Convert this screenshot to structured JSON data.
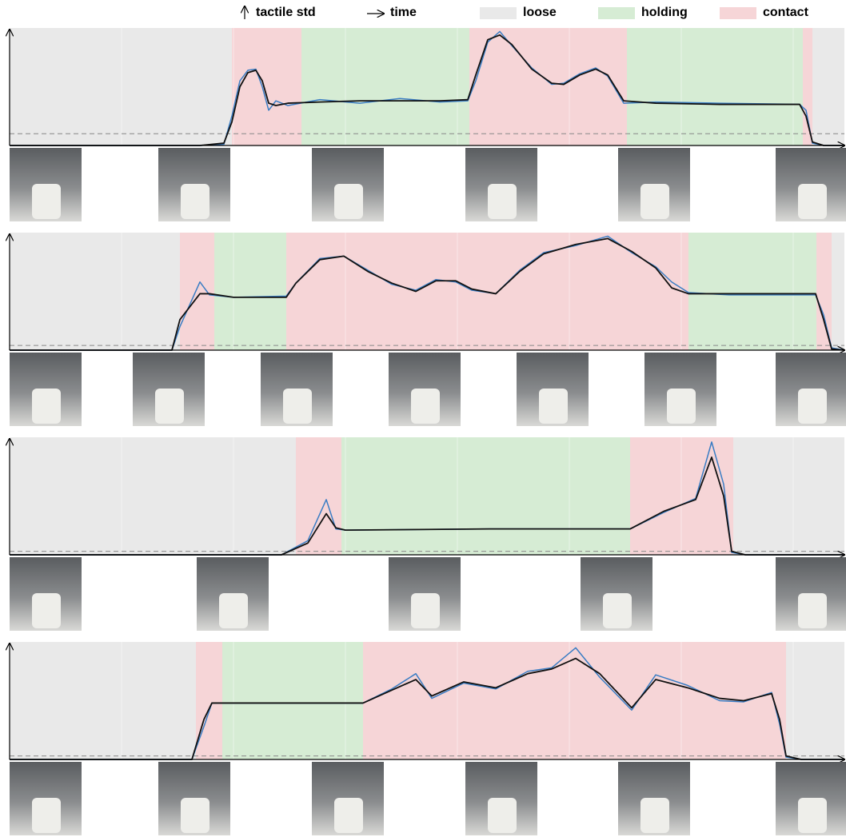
{
  "legend": {
    "y_label": "tactile std",
    "x_label": "time",
    "phases": [
      {
        "name": "loose",
        "color": "#e9e9e9"
      },
      {
        "name": "holding",
        "color": "#d6ecd4"
      },
      {
        "name": "contact",
        "color": "#f6d5d7"
      }
    ]
  },
  "chart_data": [
    {
      "type": "line",
      "xlim": [
        0,
        1044
      ],
      "ylim": [
        0,
        100
      ],
      "threshold": 10,
      "regions": [
        {
          "start": 0,
          "end": 278,
          "phase": "loose"
        },
        {
          "start": 278,
          "end": 365,
          "phase": "contact"
        },
        {
          "start": 365,
          "end": 575,
          "phase": "holding"
        },
        {
          "start": 575,
          "end": 772,
          "phase": "contact"
        },
        {
          "start": 772,
          "end": 992,
          "phase": "holding"
        },
        {
          "start": 992,
          "end": 1004,
          "phase": "contact"
        },
        {
          "start": 1004,
          "end": 1044,
          "phase": "loose"
        }
      ],
      "x": [
        0,
        238,
        268,
        278,
        288,
        298,
        308,
        316,
        324,
        333,
        348,
        388,
        438,
        488,
        538,
        573,
        583,
        598,
        613,
        628,
        653,
        678,
        693,
        713,
        733,
        748,
        768,
        808,
        888,
        988,
        996,
        1004,
        1018,
        1044
      ],
      "series": [
        {
          "color": "#3a7dc4",
          "values": [
            0,
            0,
            1,
            25,
            55,
            64,
            65,
            50,
            30,
            38,
            34,
            39,
            36,
            40,
            37,
            38,
            55,
            88,
            97,
            85,
            66,
            52,
            53,
            61,
            66,
            59,
            36,
            37,
            36,
            35,
            30,
            2,
            0,
            0
          ]
        },
        {
          "color": "#111111",
          "values": [
            0,
            0,
            2,
            20,
            50,
            62,
            64,
            55,
            36,
            34,
            36,
            37,
            38,
            38,
            38,
            39,
            60,
            90,
            94,
            86,
            65,
            53,
            52,
            60,
            65,
            60,
            38,
            36,
            35,
            35,
            25,
            3,
            0,
            0
          ]
        }
      ]
    },
    {
      "type": "line",
      "xlim": [
        0,
        1044
      ],
      "ylim": [
        0,
        100
      ],
      "threshold": 4,
      "regions": [
        {
          "start": 0,
          "end": 213,
          "phase": "loose"
        },
        {
          "start": 213,
          "end": 256,
          "phase": "contact"
        },
        {
          "start": 256,
          "end": 346,
          "phase": "holding"
        },
        {
          "start": 346,
          "end": 849,
          "phase": "contact"
        },
        {
          "start": 849,
          "end": 1009,
          "phase": "holding"
        },
        {
          "start": 1009,
          "end": 1028,
          "phase": "contact"
        },
        {
          "start": 1028,
          "end": 1044,
          "phase": "loose"
        }
      ],
      "x": [
        0,
        203,
        213,
        238,
        250,
        280,
        346,
        358,
        388,
        418,
        448,
        478,
        508,
        533,
        558,
        578,
        608,
        638,
        668,
        708,
        748,
        778,
        808,
        828,
        849,
        900,
        1008,
        1018,
        1028,
        1044
      ],
      "series": [
        {
          "color": "#3a7dc4",
          "values": [
            0,
            0,
            20,
            58,
            47,
            45,
            46,
            57,
            78,
            80,
            68,
            56,
            51,
            60,
            58,
            51,
            48,
            68,
            83,
            89,
            97,
            83,
            71,
            58,
            49,
            47,
            47,
            30,
            2,
            0
          ]
        },
        {
          "color": "#111111",
          "values": [
            0,
            0,
            26,
            48,
            48,
            45,
            45,
            57,
            77,
            80,
            67,
            57,
            50,
            59,
            59,
            52,
            48,
            67,
            82,
            90,
            95,
            84,
            70,
            53,
            48,
            48,
            48,
            26,
            1,
            0
          ]
        }
      ]
    },
    {
      "type": "line",
      "xlim": [
        0,
        1044
      ],
      "ylim": [
        0,
        100
      ],
      "threshold": 3,
      "regions": [
        {
          "start": 0,
          "end": 358,
          "phase": "loose"
        },
        {
          "start": 358,
          "end": 415,
          "phase": "contact"
        },
        {
          "start": 415,
          "end": 776,
          "phase": "holding"
        },
        {
          "start": 776,
          "end": 905,
          "phase": "contact"
        },
        {
          "start": 905,
          "end": 1044,
          "phase": "loose"
        }
      ],
      "x": [
        0,
        340,
        373,
        396,
        408,
        420,
        600,
        776,
        818,
        858,
        878,
        893,
        903,
        920,
        1044
      ],
      "series": [
        {
          "color": "#3a7dc4",
          "values": [
            0,
            0,
            12,
            47,
            22,
            21,
            22,
            22,
            36,
            48,
            96,
            60,
            2,
            0,
            0
          ]
        },
        {
          "color": "#111111",
          "values": [
            0,
            0,
            10,
            35,
            23,
            21,
            22,
            22,
            37,
            47,
            83,
            50,
            3,
            0,
            0
          ]
        }
      ]
    },
    {
      "type": "line",
      "xlim": [
        0,
        1044
      ],
      "ylim": [
        0,
        100
      ],
      "threshold": 3,
      "regions": [
        {
          "start": 0,
          "end": 233,
          "phase": "loose"
        },
        {
          "start": 233,
          "end": 266,
          "phase": "contact"
        },
        {
          "start": 266,
          "end": 442,
          "phase": "holding"
        },
        {
          "start": 442,
          "end": 971,
          "phase": "contact"
        },
        {
          "start": 971,
          "end": 1044,
          "phase": "loose"
        }
      ],
      "x": [
        0,
        228,
        243,
        253,
        442,
        478,
        508,
        528,
        568,
        608,
        648,
        678,
        708,
        738,
        778,
        808,
        848,
        888,
        918,
        953,
        963,
        971,
        990,
        1044
      ],
      "series": [
        {
          "color": "#3a7dc4",
          "values": [
            0,
            0,
            28,
            48,
            48,
            60,
            73,
            52,
            65,
            60,
            75,
            78,
            95,
            70,
            42,
            72,
            63,
            50,
            49,
            57,
            30,
            2,
            0,
            0
          ]
        },
        {
          "color": "#111111",
          "values": [
            0,
            0,
            34,
            48,
            48,
            59,
            68,
            54,
            66,
            61,
            73,
            77,
            86,
            73,
            44,
            68,
            61,
            52,
            50,
            56,
            34,
            3,
            0,
            0
          ]
        }
      ]
    }
  ]
}
